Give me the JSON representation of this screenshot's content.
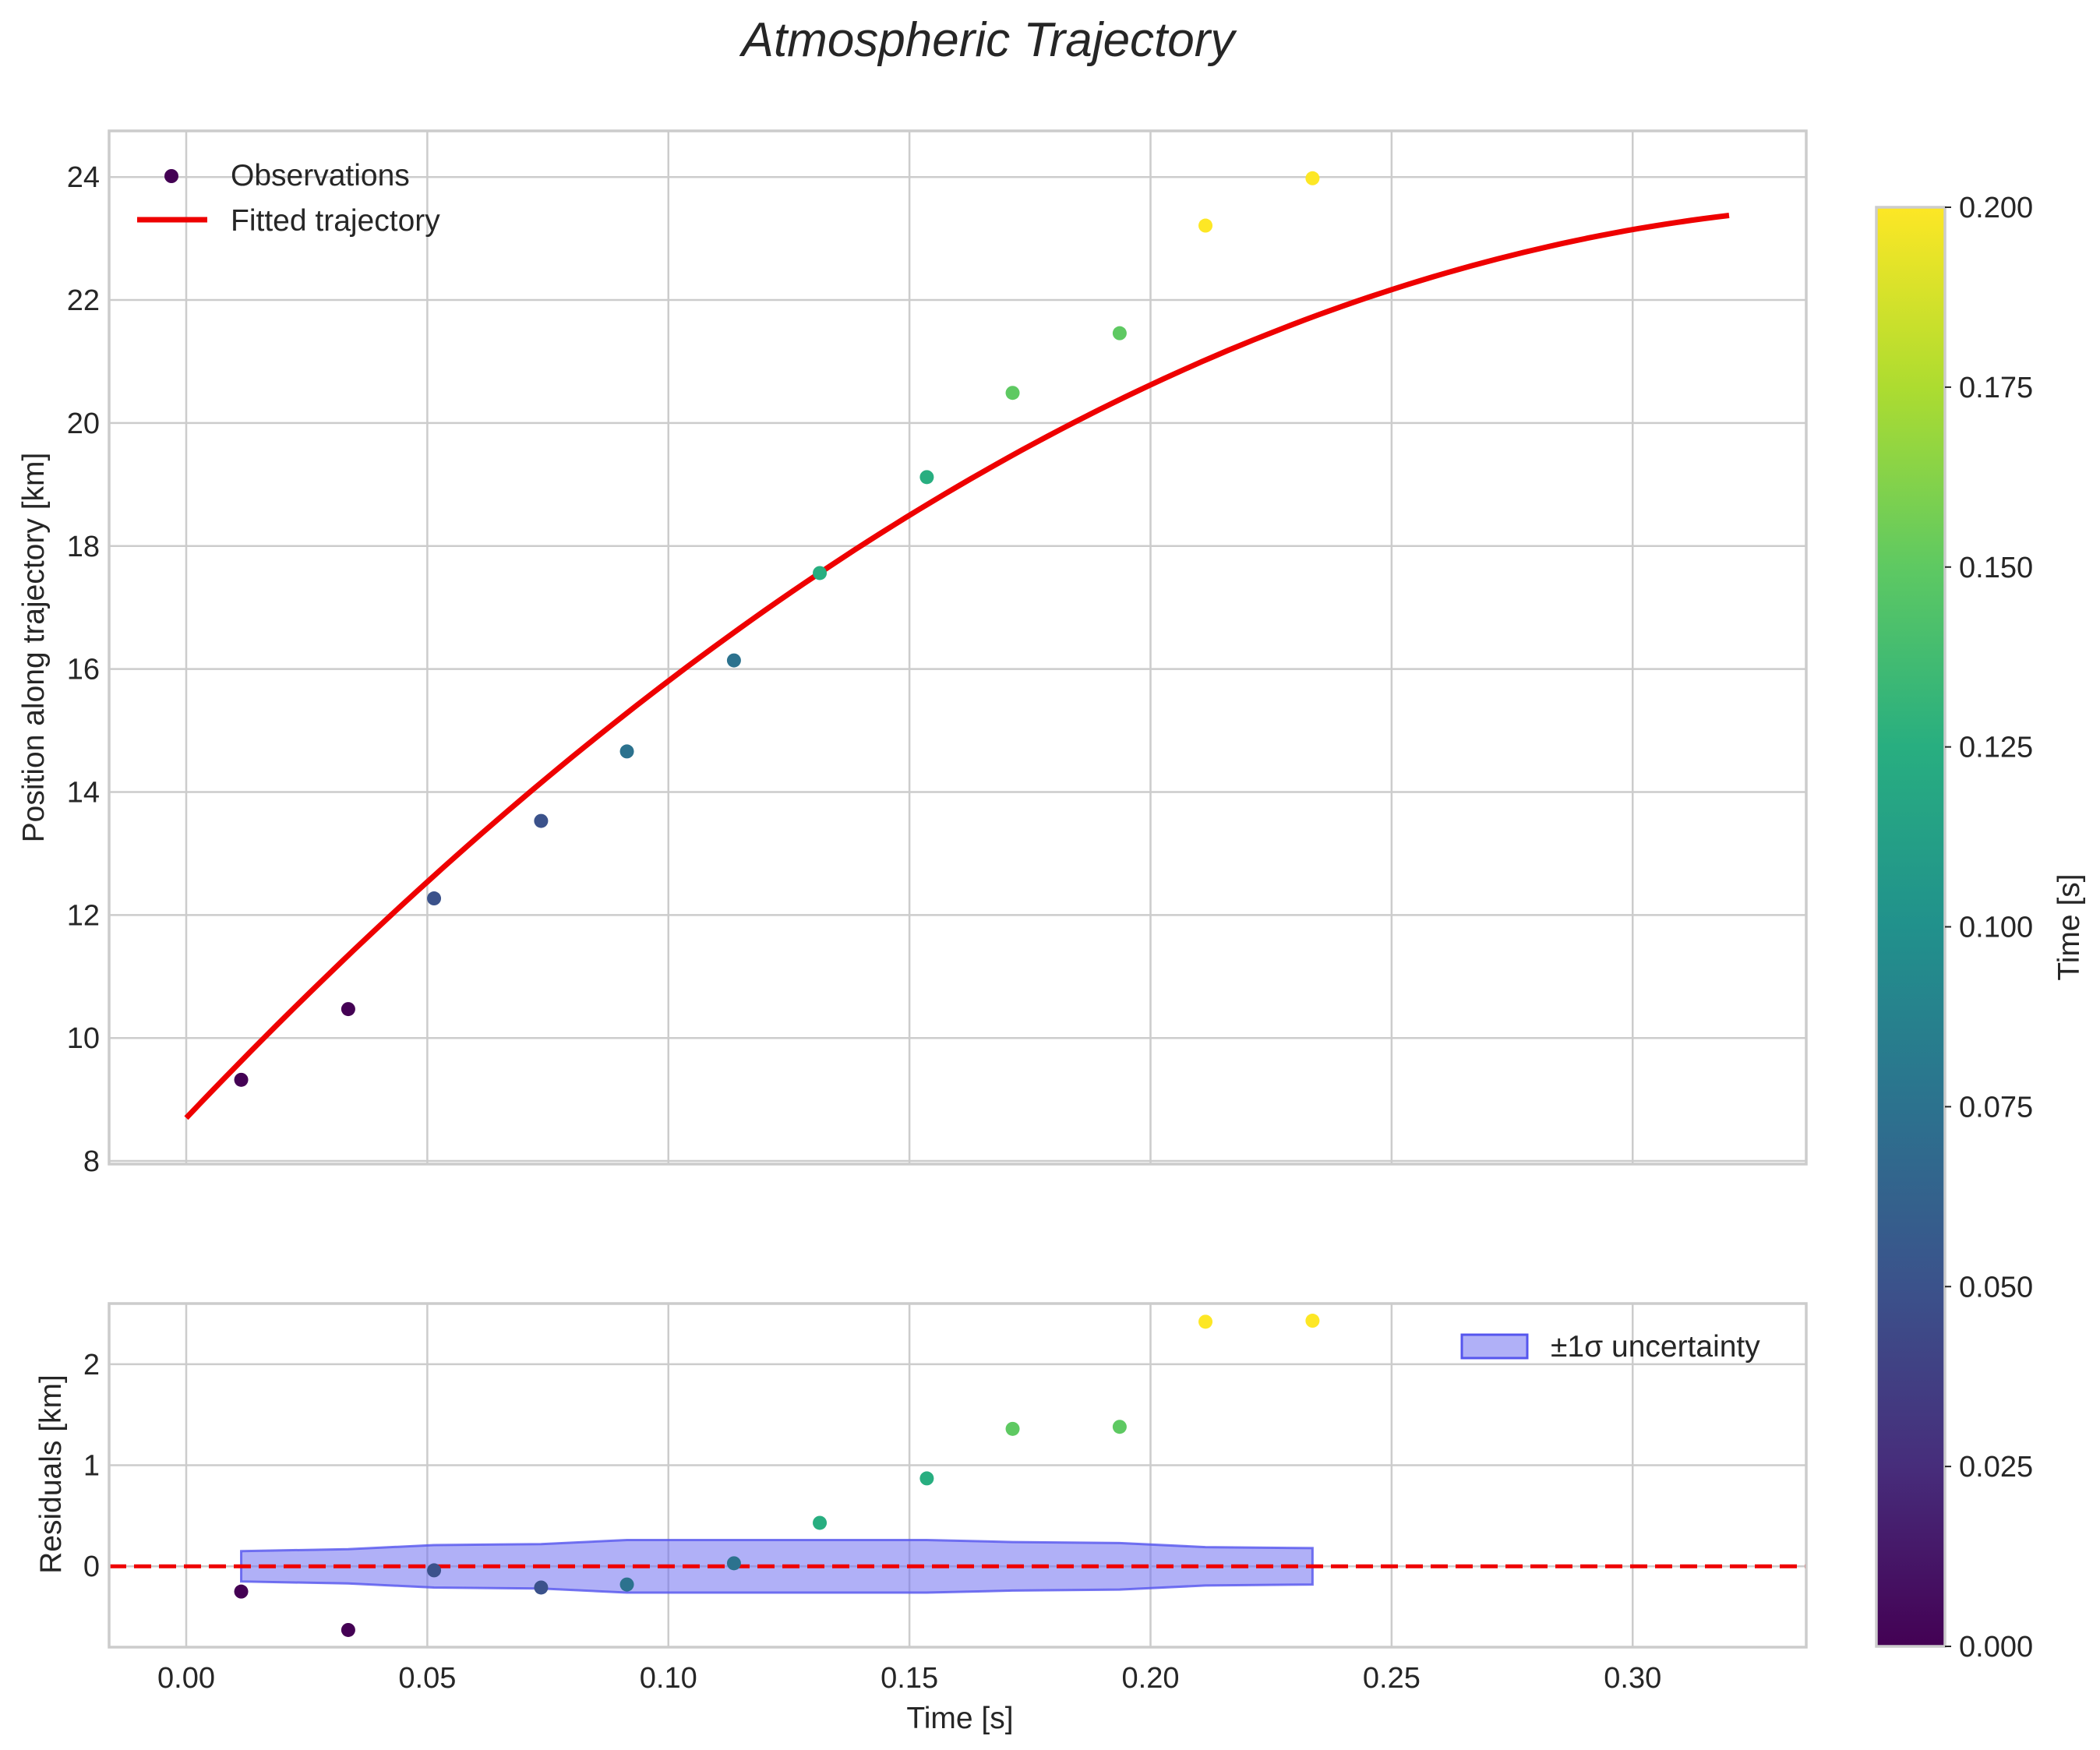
{
  "chart_data": {
    "type": "scatter",
    "title": "Atmospheric Trajectory",
    "xlabel": "Time [s]",
    "xlim": [
      -0.016,
      0.336
    ],
    "x_ticks": [
      "0.00",
      "0.05",
      "0.10",
      "0.15",
      "0.20",
      "0.25",
      "0.30"
    ],
    "grid": true,
    "panels": [
      {
        "name": "trajectory",
        "ylabel": "Position along trajectory [km]",
        "ylim": [
          7.95,
          24.75
        ],
        "y_ticks": [
          "8",
          "10",
          "12",
          "14",
          "16",
          "18",
          "20",
          "22",
          "24"
        ],
        "legend_position": "upper-left",
        "series": [
          {
            "name": "Observations",
            "type": "scatter",
            "colored_by": "time",
            "x": [
              0.0114,
              0.0336,
              0.0514,
              0.0736,
              0.0914,
              0.1136,
              0.1314,
              0.1536,
              0.1714,
              0.1936,
              0.2114,
              0.2336
            ],
            "y": [
              9.32,
              10.47,
              12.27,
              13.53,
              14.66,
              16.14,
              17.56,
              19.12,
              20.49,
              21.46,
              23.21,
              23.98
            ],
            "color_values": [
              0.0,
              0.0,
              0.05,
              0.05,
              0.075,
              0.075,
              0.125,
              0.125,
              0.15,
              0.15,
              0.2,
              0.2
            ]
          },
          {
            "name": "Fitted trajectory",
            "type": "line",
            "color": "#ee0000",
            "model": {
              "form": "a + b*t + c*t^2",
              "a": 8.7,
              "b": 82.5,
              "c": -114.5,
              "t_range": [
                0.0,
                0.32
              ]
            }
          }
        ]
      },
      {
        "name": "residuals",
        "ylabel": "Residuals [km]",
        "ylim": [
          -0.8,
          2.6
        ],
        "y_ticks": [
          "0",
          "1",
          "2"
        ],
        "legend_position": "upper-right",
        "reference_line": {
          "y": 0,
          "color": "#ee0000",
          "style": "dashed"
        },
        "band": {
          "name": "±1σ uncertainty",
          "color": "#7070f0",
          "x": [
            0.0114,
            0.0336,
            0.0514,
            0.0736,
            0.0914,
            0.1136,
            0.1314,
            0.1536,
            0.1714,
            0.1936,
            0.2114,
            0.2336
          ],
          "upper": [
            0.15,
            0.17,
            0.21,
            0.22,
            0.26,
            0.26,
            0.26,
            0.26,
            0.24,
            0.23,
            0.19,
            0.18
          ],
          "lower": [
            -0.15,
            -0.17,
            -0.21,
            -0.22,
            -0.26,
            -0.26,
            -0.26,
            -0.26,
            -0.24,
            -0.23,
            -0.19,
            -0.18
          ]
        },
        "series": [
          {
            "name": "residuals",
            "type": "scatter",
            "colored_by": "time",
            "x": [
              0.0114,
              0.0336,
              0.0514,
              0.0736,
              0.0914,
              0.1136,
              0.1314,
              0.1536,
              0.1714,
              0.1936,
              0.2114,
              0.2336
            ],
            "y": [
              -0.25,
              -0.63,
              -0.04,
              -0.21,
              -0.18,
              0.03,
              0.43,
              0.87,
              1.36,
              1.38,
              2.42,
              2.43
            ],
            "color_values": [
              0.0,
              0.0,
              0.05,
              0.05,
              0.075,
              0.075,
              0.125,
              0.125,
              0.15,
              0.15,
              0.2,
              0.2
            ]
          }
        ]
      }
    ],
    "colorbar": {
      "label": "Time [s]",
      "colormap": "viridis",
      "range": [
        0.0,
        0.2
      ],
      "ticks": [
        "0.000",
        "0.025",
        "0.050",
        "0.075",
        "0.100",
        "0.125",
        "0.150",
        "0.175",
        "0.200"
      ]
    }
  },
  "colors": {
    "fit_line": "#ee0000",
    "band_fill": "#7070f0",
    "grid": "#cccccc"
  }
}
